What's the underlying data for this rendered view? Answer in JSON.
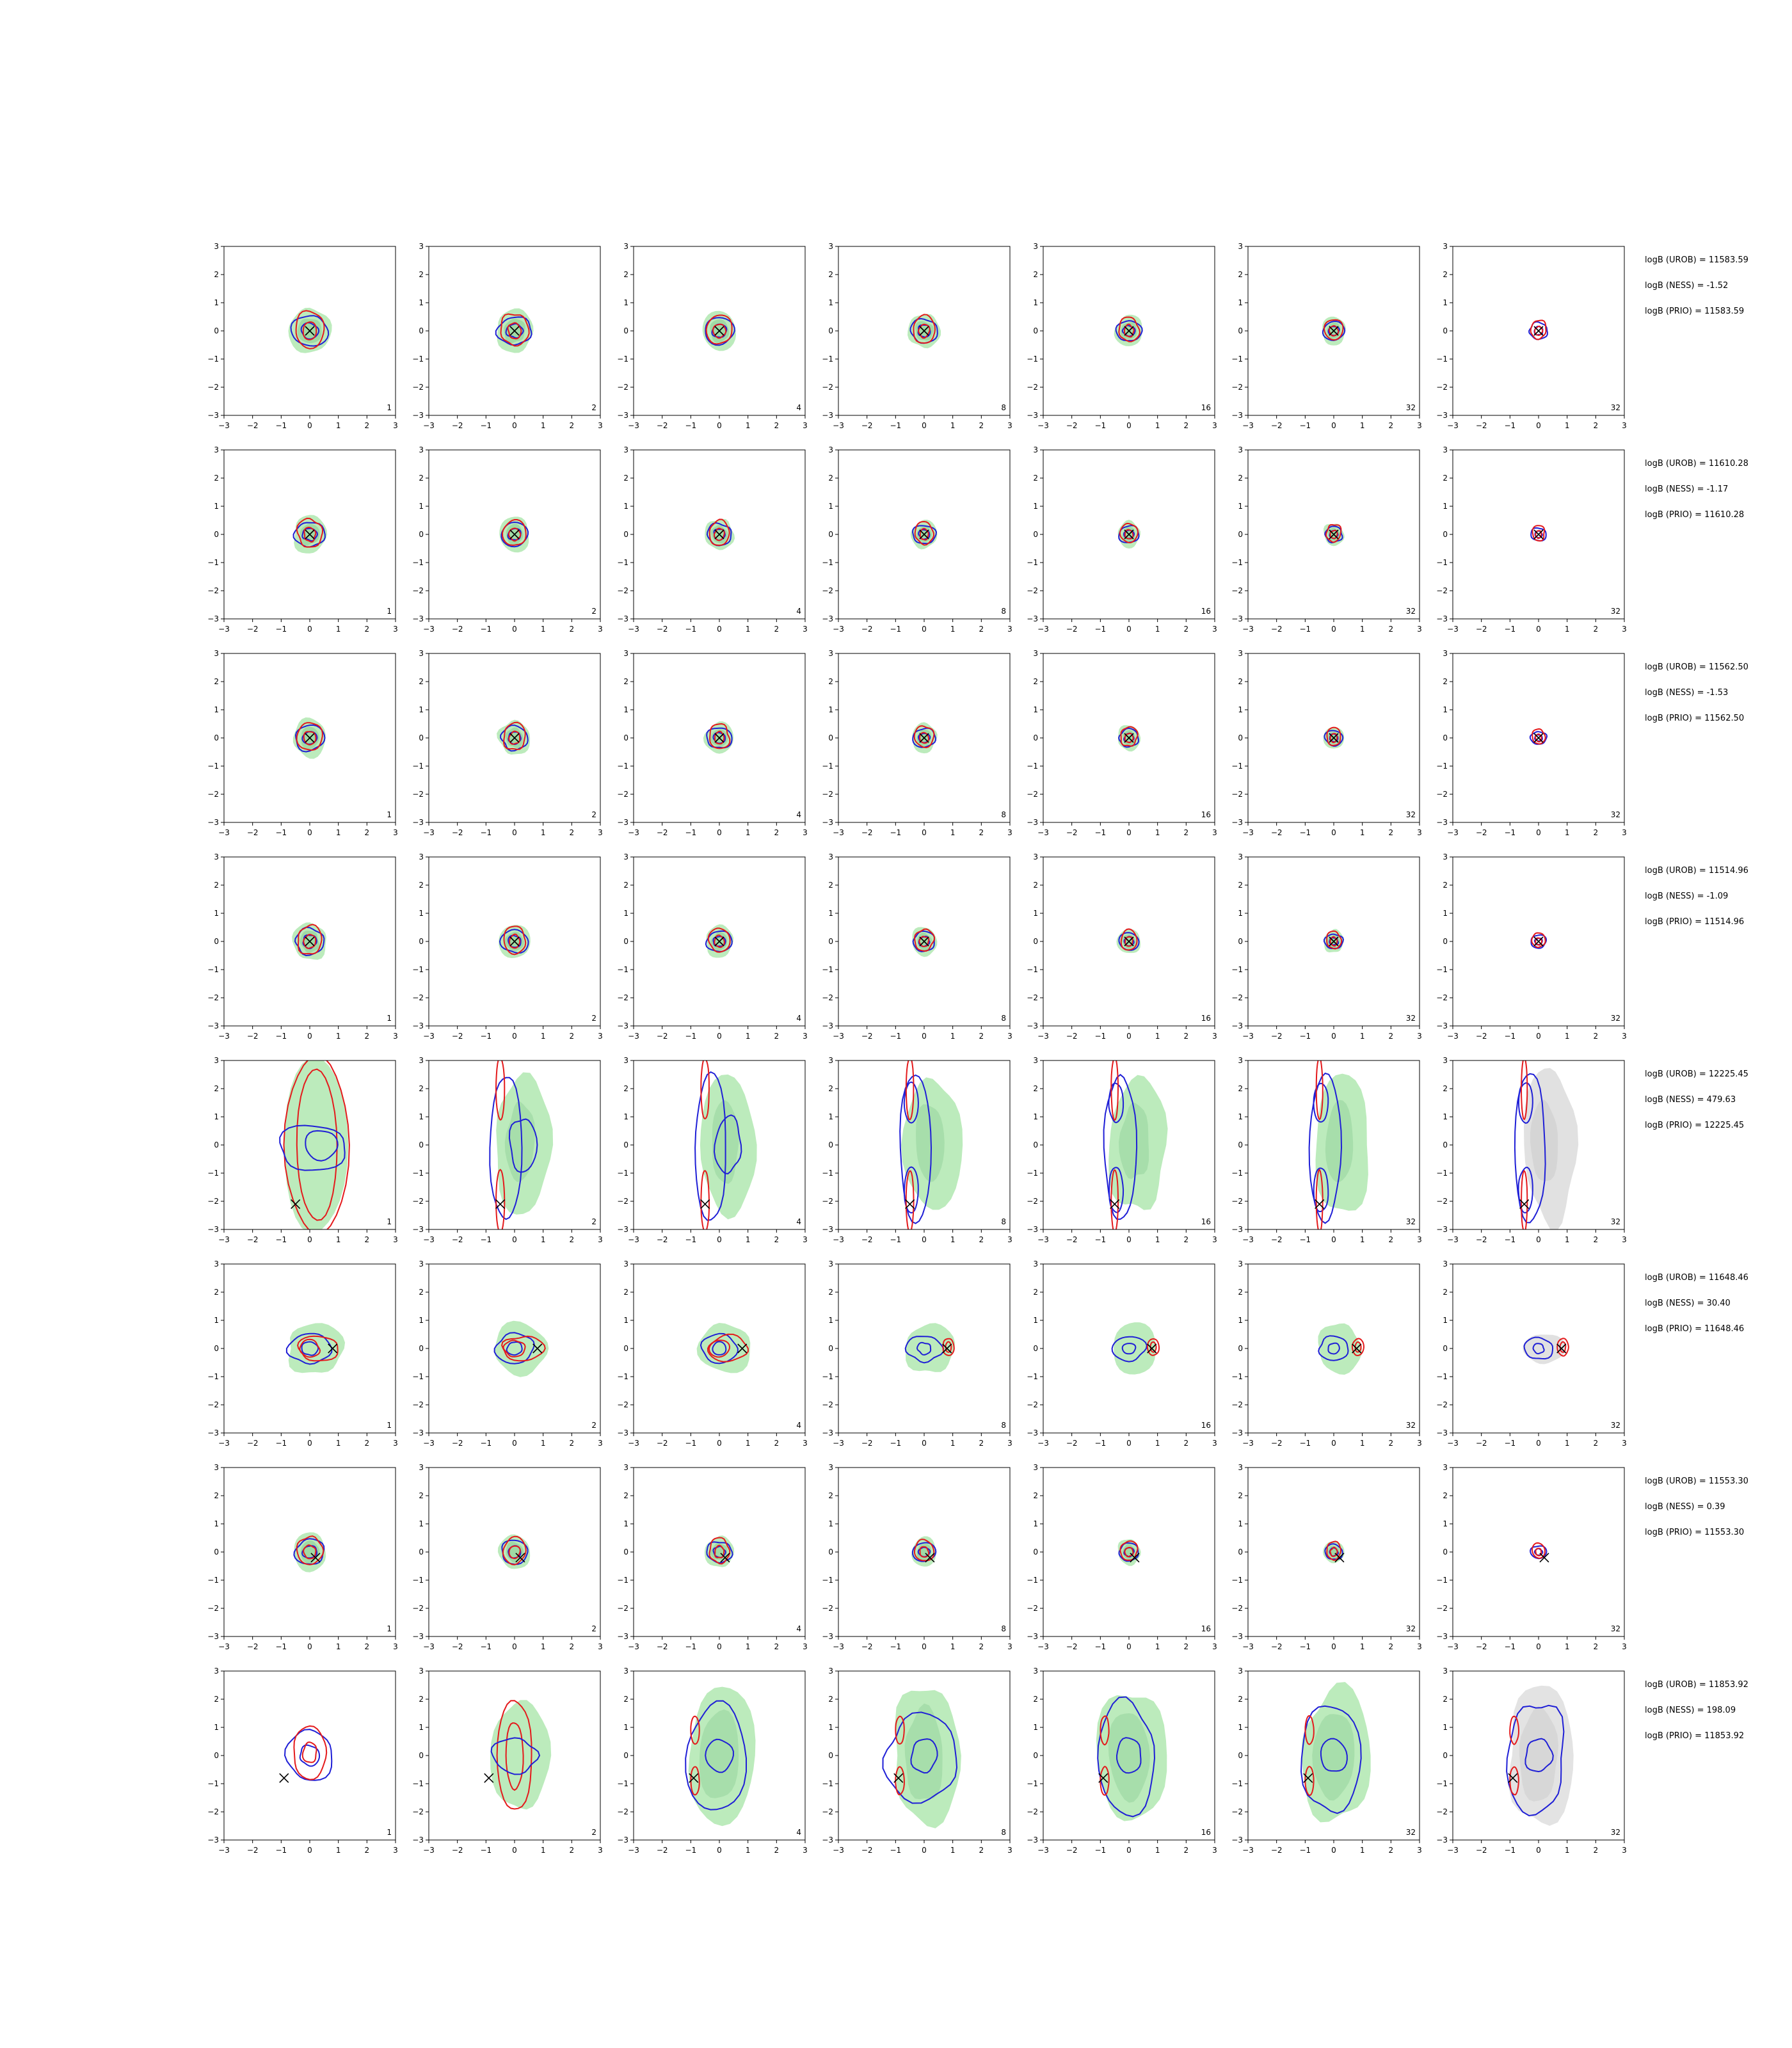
{
  "chart_data": {
    "type": "contour",
    "grid": {
      "rows": 8,
      "cols": 7
    },
    "axes": {
      "xlim": [
        -3,
        3
      ],
      "ylim": [
        -3,
        3
      ],
      "ticks": [
        -3,
        -2,
        -1,
        0,
        1,
        2,
        3
      ],
      "tick_labels": [
        "−3",
        "−2",
        "−1",
        "0",
        "1",
        "2",
        "3"
      ]
    },
    "panel_counts": [
      "1",
      "2",
      "4",
      "8",
      "16",
      "32",
      "32"
    ],
    "colors": {
      "red": "#e41a1c",
      "blue": "#1f1fd6",
      "green_fill": "#a6e4a6",
      "green_dark": "#8dcf96",
      "gray_fill": "#d9d9d9",
      "marker": "#000000"
    },
    "rows": [
      {
        "kind": "centered",
        "spread": 0.55,
        "marker": [
          0,
          0
        ],
        "logB": [
          "logB (UROB) = 11583.59",
          "logB (NESS) = -1.52",
          "logB (PRIO) = 11583.59"
        ]
      },
      {
        "kind": "centered",
        "spread": 0.45,
        "marker": [
          0,
          0
        ],
        "logB": [
          "logB (UROB) = 11610.28",
          "logB (NESS) = -1.17",
          "logB (PRIO) = 11610.28"
        ]
      },
      {
        "kind": "centered",
        "spread": 0.45,
        "marker": [
          0,
          0
        ],
        "logB": [
          "logB (UROB) = 11562.50",
          "logB (NESS) = -1.53",
          "logB (PRIO) = 11562.50"
        ]
      },
      {
        "kind": "centered",
        "spread": 0.45,
        "marker": [
          0,
          0
        ],
        "logB": [
          "logB (UROB) = 11514.96",
          "logB (NESS) = -1.09",
          "logB (PRIO) = 11514.96"
        ]
      },
      {
        "kind": "bimodal-vertical",
        "marker": [
          -0.5,
          -2.1
        ],
        "logB": [
          "logB (UROB) = 12225.45",
          "logB (NESS) = 479.63",
          "logB (PRIO) = 12225.45"
        ]
      },
      {
        "kind": "offset-right",
        "marker": [
          0.8,
          0
        ],
        "logB": [
          "logB (UROB) = 11648.46",
          "logB (NESS) = 30.40",
          "logB (PRIO) = 11648.46"
        ]
      },
      {
        "kind": "centered-small",
        "spread": 0.45,
        "marker": [
          0.2,
          -0.2
        ],
        "logB": [
          "logB (UROB) = 11553.30",
          "logB (NESS) = 0.39",
          "logB (PRIO) = 11553.30"
        ]
      },
      {
        "kind": "bimodal-left",
        "marker": [
          -0.9,
          -0.8
        ],
        "logB": [
          "logB (UROB) = 11853.92",
          "logB (NESS) = 198.09",
          "logB (PRIO) = 11853.92"
        ]
      }
    ]
  }
}
